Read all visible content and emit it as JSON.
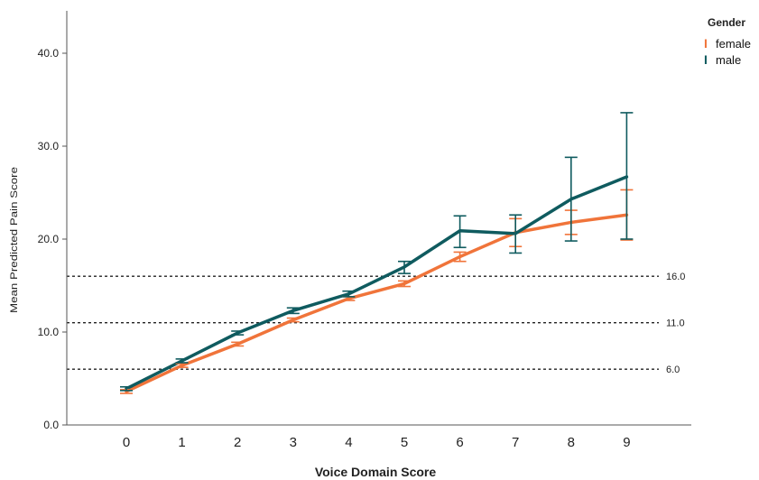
{
  "chart_data": {
    "type": "line",
    "xlabel": "Voice Domain Score",
    "ylabel": "Mean Predicted Pain Score",
    "x": [
      0,
      1,
      2,
      3,
      4,
      5,
      6,
      7,
      8,
      9
    ],
    "x_tick_labels": [
      "0",
      "1",
      "2",
      "3",
      "4",
      "5",
      "6",
      "7",
      "8",
      "9"
    ],
    "ylim": [
      0,
      44
    ],
    "y_ticks": [
      0,
      10,
      20,
      30,
      40
    ],
    "y_tick_labels": [
      "0.0",
      "10.0",
      "20.0",
      "30.0",
      "40.0"
    ],
    "legend": {
      "title": "Gender",
      "position": "top-right"
    },
    "series": [
      {
        "name": "female",
        "color": "#F0743A",
        "values": [
          3.6,
          6.4,
          8.7,
          11.3,
          13.6,
          15.2,
          18.1,
          20.7,
          21.8,
          22.6
        ],
        "error_low": [
          3.4,
          6.2,
          8.5,
          11.1,
          13.4,
          14.9,
          17.6,
          19.2,
          20.5,
          19.9
        ],
        "error_high": [
          3.8,
          6.6,
          8.9,
          11.5,
          13.8,
          15.5,
          18.6,
          22.2,
          23.1,
          25.3
        ]
      },
      {
        "name": "male",
        "color": "#0F5B5F",
        "values": [
          3.9,
          6.9,
          9.9,
          12.3,
          14.1,
          17.0,
          20.9,
          20.6,
          24.3,
          26.7
        ],
        "error_low": [
          3.7,
          6.7,
          9.7,
          12.0,
          13.8,
          16.3,
          19.1,
          18.5,
          19.8,
          20.0
        ],
        "error_high": [
          4.1,
          7.1,
          10.1,
          12.6,
          14.4,
          17.6,
          22.5,
          22.6,
          28.8,
          33.6
        ]
      }
    ],
    "reference_lines": [
      {
        "y": 16.0,
        "label": "16.0"
      },
      {
        "y": 11.0,
        "label": "11.0"
      },
      {
        "y": 6.0,
        "label": "6.0"
      }
    ]
  }
}
